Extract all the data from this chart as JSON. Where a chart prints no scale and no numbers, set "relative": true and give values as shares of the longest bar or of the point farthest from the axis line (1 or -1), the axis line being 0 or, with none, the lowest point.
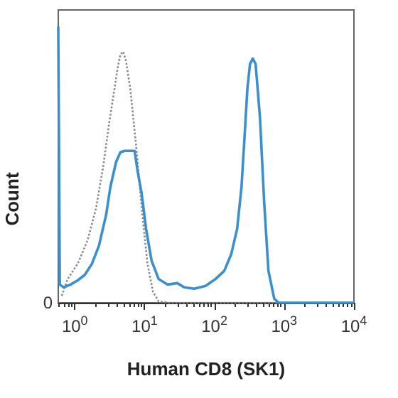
{
  "chart_data": {
    "type": "line",
    "relative": true,
    "xlabel": "Human CD8 (SK1)",
    "ylabel": "Count",
    "log": "x",
    "xlim": [
      0.58,
      10000
    ],
    "xticks": [
      {
        "value": 1,
        "label": "10$^{0}$"
      },
      {
        "value": 10,
        "label": "10$^{1}$"
      },
      {
        "value": 100,
        "label": "10$^{2}$"
      },
      {
        "value": 1000,
        "label": "10$^{3}$"
      },
      {
        "value": 10000,
        "label": "10$^{4}$"
      }
    ],
    "annotations": [
      "0"
    ],
    "series": [
      {
        "color": "#8a8a8a",
        "line_style": "dotted",
        "x": [
          0.65,
          0.79,
          1.1,
          1.53,
          2.02,
          2.56,
          3.09,
          3.56,
          4.1,
          4.5,
          4.94,
          5.43,
          6.25,
          7.55,
          9.1,
          11,
          13.2,
          15.9,
          23.2,
          10000
        ],
        "values": [
          0.025,
          0.086,
          0.141,
          0.227,
          0.343,
          0.495,
          0.646,
          0.747,
          0.848,
          0.899,
          0.909,
          0.874,
          0.773,
          0.571,
          0.343,
          0.141,
          0.04,
          0.005,
          0,
          0
        ]
      },
      {
        "color": "#3a8fd0",
        "line_style": "solid",
        "x": [
          0.58,
          0.61,
          0.69,
          0.87,
          1.1,
          1.39,
          1.76,
          2.22,
          2.81,
          3.24,
          3.91,
          4.5,
          5.18,
          7.2,
          7.9,
          9.1,
          10.5,
          12.6,
          15.9,
          21.2,
          29.5,
          37,
          51.5,
          75,
          104,
          139,
          175,
          212,
          245,
          270,
          297,
          324,
          355,
          390,
          450,
          516,
          595,
          720,
          830,
          10000
        ],
        "values": [
          1,
          0.066,
          0.056,
          0.066,
          0.081,
          0.101,
          0.141,
          0.207,
          0.318,
          0.42,
          0.51,
          0.545,
          0.55,
          0.55,
          0.48,
          0.394,
          0.268,
          0.152,
          0.086,
          0.066,
          0.071,
          0.056,
          0.051,
          0.061,
          0.086,
          0.116,
          0.177,
          0.268,
          0.42,
          0.596,
          0.773,
          0.864,
          0.884,
          0.864,
          0.672,
          0.369,
          0.116,
          0.015,
          0,
          0
        ]
      }
    ]
  }
}
